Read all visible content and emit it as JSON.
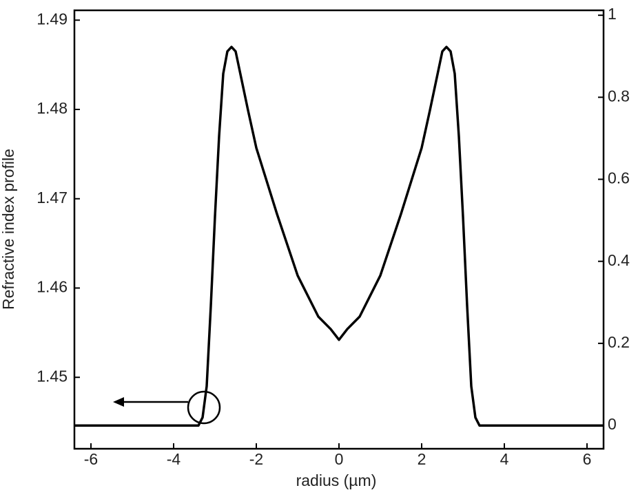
{
  "chart_data": {
    "type": "line",
    "xlabel": "radius (µm)",
    "ylabel": "Refractive index profile",
    "x": [
      -6.4,
      -3.4,
      -3.3,
      -3.2,
      -3.1,
      -3.0,
      -2.9,
      -2.8,
      -2.7,
      -2.6,
      -2.5,
      -2.2,
      -2.0,
      -1.5,
      -1.0,
      -0.5,
      -0.2,
      0,
      0.2,
      0.5,
      1.0,
      1.5,
      2.0,
      2.2,
      2.5,
      2.6,
      2.7,
      2.8,
      2.9,
      3.0,
      3.1,
      3.2,
      3.3,
      3.4,
      6.4
    ],
    "series": [
      {
        "color": "#000000",
        "values": [
          1.4446,
          1.4446,
          1.4455,
          1.449,
          1.458,
          1.468,
          1.477,
          1.484,
          1.4865,
          1.487,
          1.4865,
          1.4799,
          1.4757,
          1.4683,
          1.4614,
          1.4568,
          1.4554,
          1.4542,
          1.4554,
          1.4568,
          1.4614,
          1.4683,
          1.4757,
          1.4799,
          1.4865,
          1.487,
          1.4865,
          1.484,
          1.477,
          1.468,
          1.458,
          1.449,
          1.4455,
          1.4446,
          1.4446
        ]
      }
    ],
    "xlim": [
      -6.4,
      6.4
    ],
    "xticks": [
      -6,
      -4,
      -2,
      0,
      2,
      4,
      6
    ],
    "ylim": [
      1.442,
      1.4911
    ],
    "yticks": [
      1.45,
      1.46,
      1.47,
      1.48,
      1.49
    ],
    "y2lim": [
      -0.057,
      1.012
    ],
    "y2ticks": [
      0,
      0.2,
      0.4,
      0.6,
      0.8,
      1
    ]
  }
}
